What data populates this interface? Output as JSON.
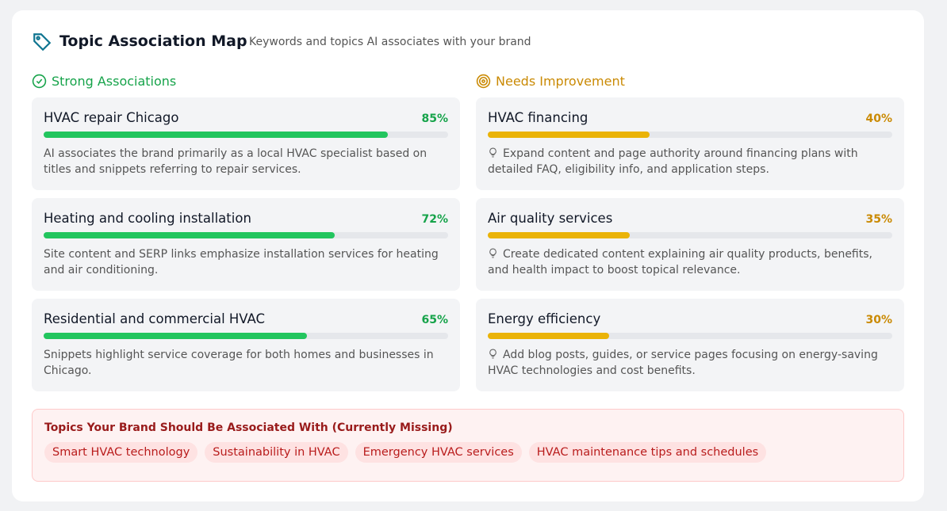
{
  "header": {
    "title": "Topic Association Map",
    "subtitle": "Keywords and topics AI associates with your brand"
  },
  "strong": {
    "heading": "Strong Associations",
    "items": [
      {
        "title": "HVAC repair Chicago",
        "score": {
          "value": 85,
          "label": "85%"
        },
        "description": "AI associates the brand primarily as a local HVAC specialist based on titles and snippets referring to repair services."
      },
      {
        "title": "Heating and cooling installation",
        "score": {
          "value": 72,
          "label": "72%"
        },
        "description": "Site content and SERP links emphasize installation services for heating and air conditioning."
      },
      {
        "title": "Residential and commercial HVAC",
        "score": {
          "value": 65,
          "label": "65%"
        },
        "description": "Snippets highlight service coverage for both homes and businesses in Chicago."
      }
    ]
  },
  "improve": {
    "heading": "Needs Improvement",
    "items": [
      {
        "title": "HVAC financing",
        "score": {
          "value": 40,
          "label": "40%"
        },
        "description": "Expand content and page authority around financing plans with detailed FAQ, eligibility info, and application steps."
      },
      {
        "title": "Air quality services",
        "score": {
          "value": 35,
          "label": "35%"
        },
        "description": "Create dedicated content explaining air quality products, benefits, and health impact to boost topical relevance."
      },
      {
        "title": "Energy efficiency",
        "score": {
          "value": 30,
          "label": "30%"
        },
        "description": "Add blog posts, guides, or service pages focusing on energy-saving HVAC technologies and cost benefits."
      }
    ]
  },
  "missing": {
    "heading": "Topics Your Brand Should Be Associated With (Currently Missing)",
    "topics": [
      "Smart HVAC technology",
      "Sustainability in HVAC",
      "Emergency HVAC services",
      "HVAC maintenance tips and schedules"
    ]
  }
}
